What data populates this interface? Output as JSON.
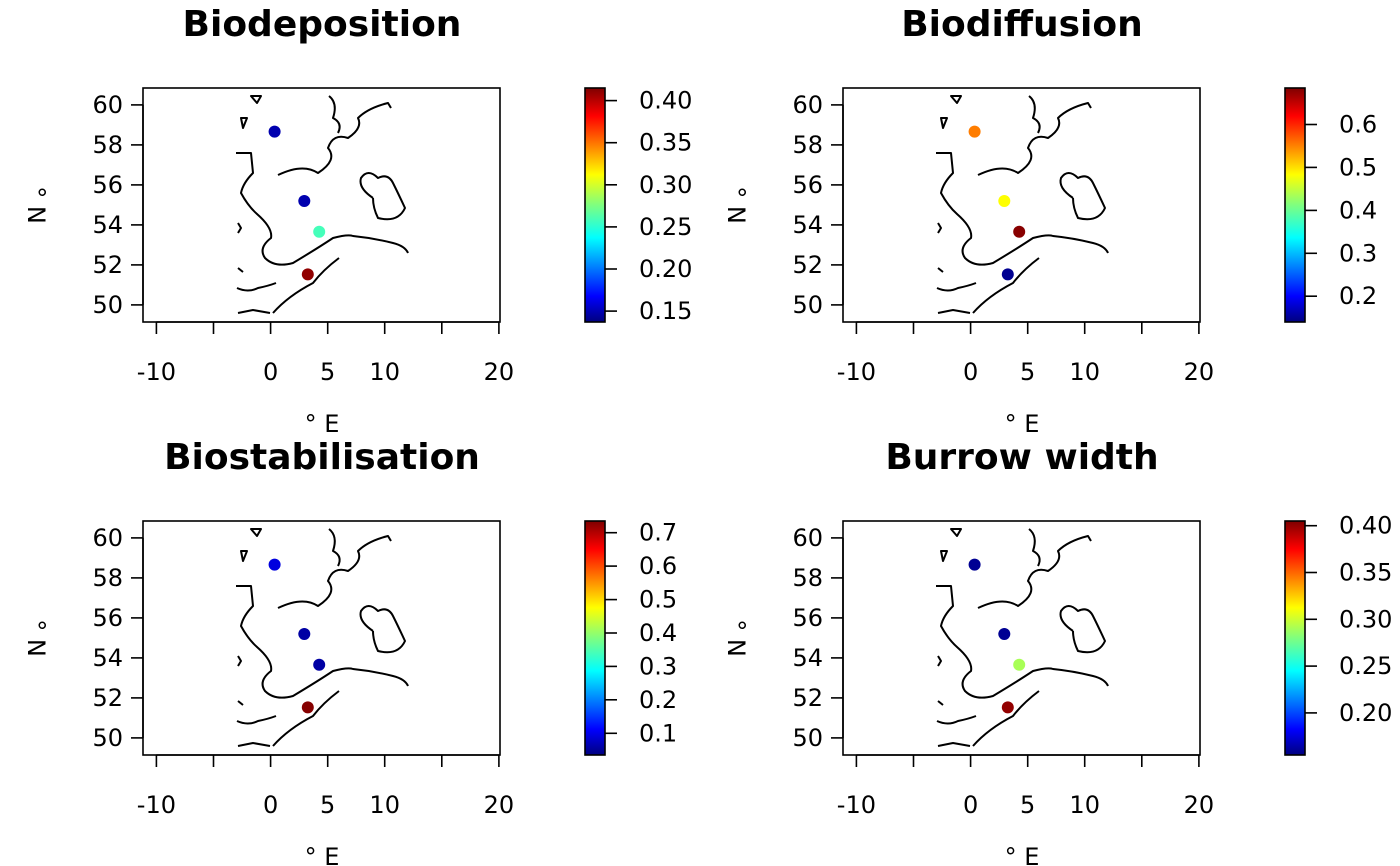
{
  "chart_data": [
    {
      "type": "scatter",
      "title": "Biodeposition",
      "xlabel": "° E",
      "ylabel": "° N",
      "xlim": [
        -11,
        20.2
      ],
      "ylim": [
        49.1,
        60.9
      ],
      "x_ticks": [
        -10,
        -5,
        0,
        5,
        10,
        15,
        20
      ],
      "x_tick_labels": [
        "-10",
        "",
        "0",
        "5",
        "10",
        "",
        "20"
      ],
      "y_ticks": [
        50,
        52,
        54,
        56,
        58,
        60
      ],
      "y_tick_labels": [
        "50",
        "52",
        "54",
        "56",
        "58",
        "60"
      ],
      "x": [
        0.5,
        3.1,
        4.4,
        3.4
      ],
      "y": [
        58.7,
        55.2,
        53.65,
        51.5
      ],
      "values": [
        0.15,
        0.15,
        0.26,
        0.41
      ],
      "color_range": [
        0.137,
        0.415
      ],
      "colorbar_ticks": [
        0.15,
        0.2,
        0.25,
        0.3,
        0.35,
        0.4
      ],
      "colorbar_tick_labels": [
        "0.15",
        "0.20",
        "0.25",
        "0.30",
        "0.35",
        "0.40"
      ]
    },
    {
      "type": "scatter",
      "title": "Biodiffusion",
      "xlabel": "° E",
      "ylabel": "° N",
      "xlim": [
        -11,
        20.2
      ],
      "ylim": [
        49.1,
        60.9
      ],
      "x_ticks": [
        -10,
        -5,
        0,
        5,
        10,
        15,
        20
      ],
      "x_tick_labels": [
        "-10",
        "",
        "0",
        "5",
        "10",
        "",
        "20"
      ],
      "y_ticks": [
        50,
        52,
        54,
        56,
        58,
        60
      ],
      "y_tick_labels": [
        "50",
        "52",
        "54",
        "56",
        "58",
        "60"
      ],
      "x": [
        0.5,
        3.1,
        4.4,
        3.4
      ],
      "y": [
        58.7,
        55.2,
        53.65,
        51.5
      ],
      "values": [
        0.55,
        0.48,
        0.68,
        0.15
      ],
      "color_range": [
        0.14,
        0.685
      ],
      "colorbar_ticks": [
        0.2,
        0.3,
        0.4,
        0.5,
        0.6
      ],
      "colorbar_tick_labels": [
        "0.2",
        "0.3",
        "0.4",
        "0.5",
        "0.6"
      ]
    },
    {
      "type": "scatter",
      "title": "Biostabilisation",
      "xlabel": "° E",
      "ylabel": "° N",
      "xlim": [
        -11,
        20.2
      ],
      "ylim": [
        49.1,
        60.9
      ],
      "x_ticks": [
        -10,
        -5,
        0,
        5,
        10,
        15,
        20
      ],
      "x_tick_labels": [
        "-10",
        "",
        "0",
        "5",
        "10",
        "",
        "20"
      ],
      "y_ticks": [
        50,
        52,
        54,
        56,
        58,
        60
      ],
      "y_tick_labels": [
        "50",
        "52",
        "54",
        "56",
        "58",
        "60"
      ],
      "x": [
        0.5,
        3.1,
        4.4,
        3.4
      ],
      "y": [
        58.7,
        55.2,
        53.65,
        51.5
      ],
      "values": [
        0.1,
        0.06,
        0.06,
        0.73
      ],
      "color_range": [
        0.035,
        0.735
      ],
      "colorbar_ticks": [
        0.1,
        0.2,
        0.3,
        0.4,
        0.5,
        0.6,
        0.7
      ],
      "colorbar_tick_labels": [
        "0.1",
        "0.2",
        "0.3",
        "0.4",
        "0.5",
        "0.6",
        "0.7"
      ]
    },
    {
      "type": "scatter",
      "title": "Burrow width",
      "xlabel": "° E",
      "ylabel": "° N",
      "xlim": [
        -11,
        20.2
      ],
      "ylim": [
        49.1,
        60.9
      ],
      "x_ticks": [
        -10,
        -5,
        0,
        5,
        10,
        15,
        20
      ],
      "x_tick_labels": [
        "-10",
        "",
        "0",
        "5",
        "10",
        "",
        "20"
      ],
      "y_ticks": [
        50,
        52,
        54,
        56,
        58,
        60
      ],
      "y_tick_labels": [
        "50",
        "52",
        "54",
        "56",
        "58",
        "60"
      ],
      "x": [
        0.5,
        3.1,
        4.4,
        3.4
      ],
      "y": [
        58.7,
        55.2,
        53.65,
        51.5
      ],
      "values": [
        0.16,
        0.16,
        0.29,
        0.4
      ],
      "color_range": [
        0.155,
        0.405
      ],
      "colorbar_ticks": [
        0.2,
        0.25,
        0.3,
        0.35,
        0.4
      ],
      "colorbar_tick_labels": [
        "0.20",
        "0.25",
        "0.30",
        "0.35",
        "0.40"
      ]
    }
  ],
  "colormap": [
    "#00007f",
    "#0000ff",
    "#007fff",
    "#00ffff",
    "#7fff7f",
    "#ffff00",
    "#ff7f00",
    "#ff0000",
    "#7f0000"
  ]
}
